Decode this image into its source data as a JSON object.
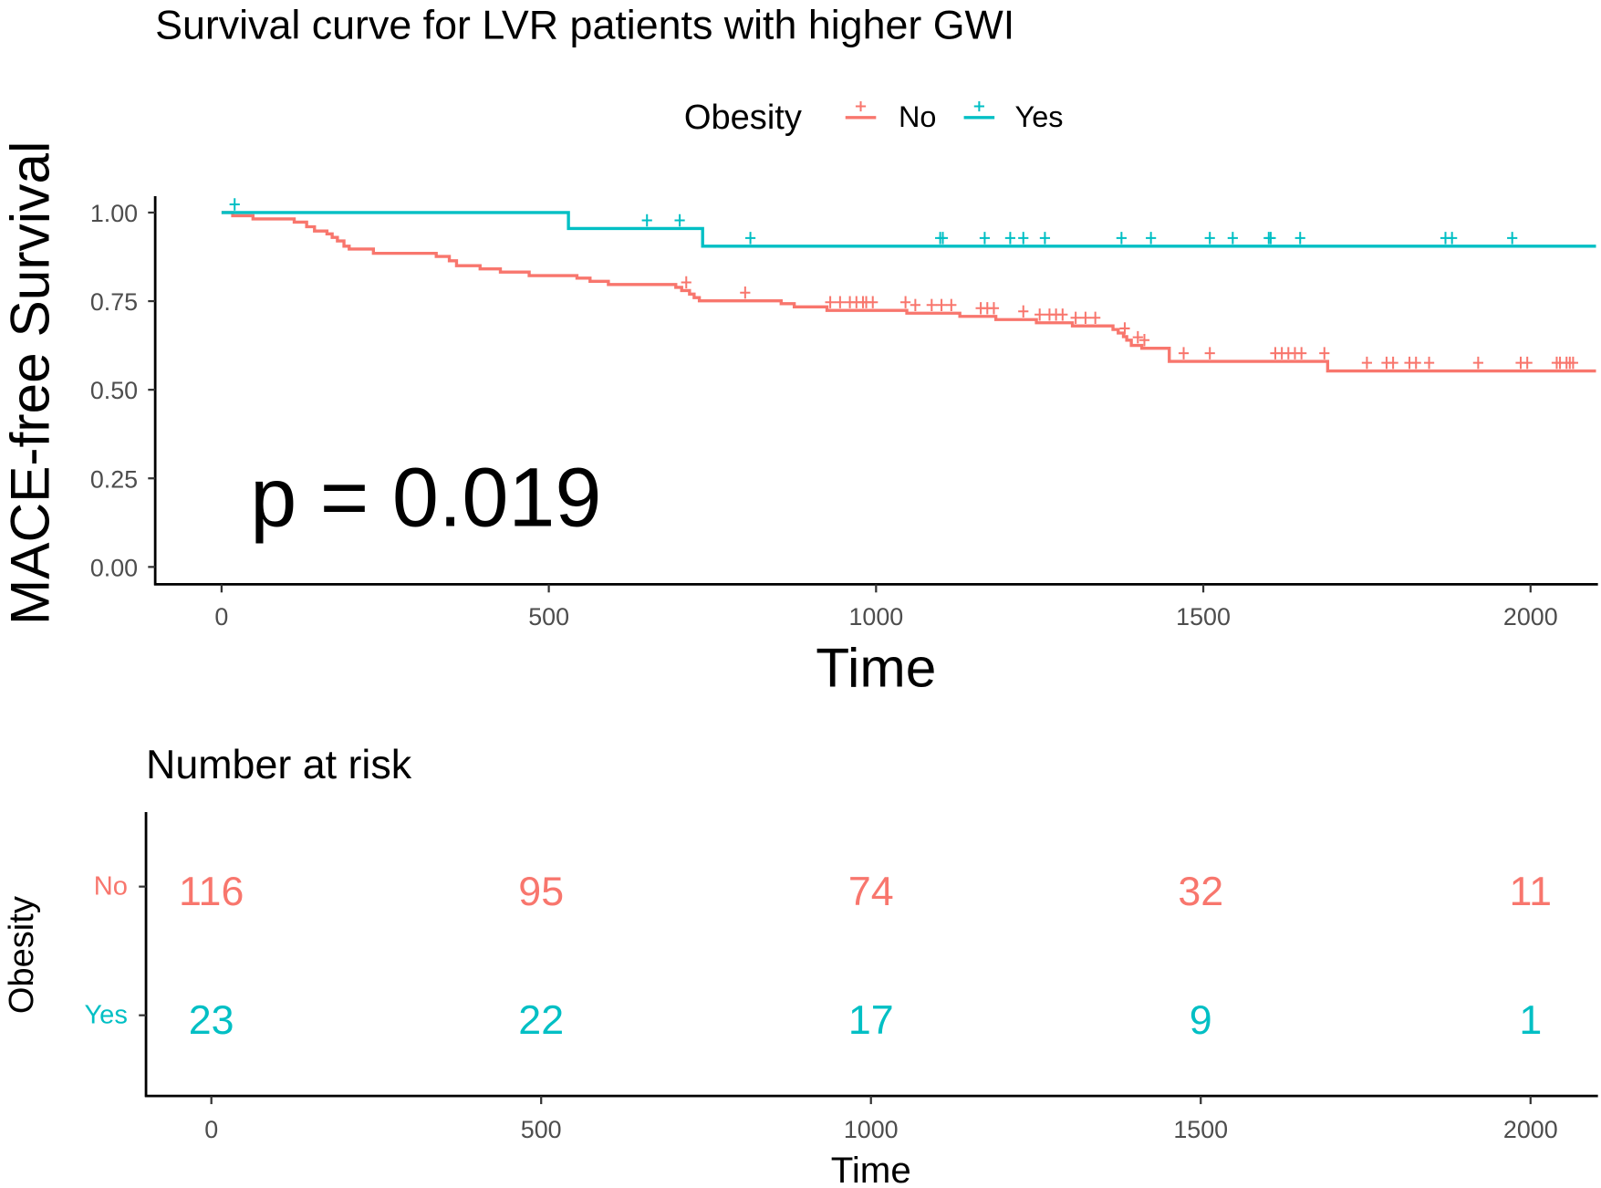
{
  "chart_data": {
    "type": "line",
    "title": "Survival curve for LVR patients with higher GWI",
    "xlabel": "Time",
    "ylabel": "MACE-free Survival",
    "xlim": [
      -100,
      2100
    ],
    "ylim": [
      0,
      1
    ],
    "xticks": [
      "0",
      "500",
      "1000",
      "1500",
      "2000"
    ],
    "xtick_values": [
      0,
      500,
      1000,
      1500,
      2000
    ],
    "yticks": [
      "0.00",
      "0.25",
      "0.50",
      "0.75",
      "1.00"
    ],
    "ytick_values": [
      0,
      0.25,
      0.5,
      0.75,
      1.0
    ],
    "legend": {
      "title": "Obesity",
      "placement": "top",
      "entries": [
        "No",
        "Yes"
      ]
    },
    "annotation": "p = 0.019",
    "grid": false,
    "series": [
      {
        "name": "No",
        "color": "#F8766D",
        "steps": [
          [
            0,
            1.0
          ],
          [
            17,
            0.991
          ],
          [
            48,
            0.982
          ],
          [
            111,
            0.973
          ],
          [
            130,
            0.96
          ],
          [
            142,
            0.948
          ],
          [
            161,
            0.94
          ],
          [
            169,
            0.93
          ],
          [
            177,
            0.92
          ],
          [
            187,
            0.905
          ],
          [
            195,
            0.897
          ],
          [
            232,
            0.885
          ],
          [
            328,
            0.876
          ],
          [
            348,
            0.864
          ],
          [
            359,
            0.85
          ],
          [
            395,
            0.841
          ],
          [
            426,
            0.832
          ],
          [
            470,
            0.822
          ],
          [
            543,
            0.815
          ],
          [
            563,
            0.806
          ],
          [
            591,
            0.797
          ],
          [
            694,
            0.789
          ],
          [
            703,
            0.78
          ],
          [
            715,
            0.77
          ],
          [
            722,
            0.76
          ],
          [
            730,
            0.751
          ],
          [
            855,
            0.743
          ],
          [
            875,
            0.734
          ],
          [
            925,
            0.724
          ],
          [
            1047,
            0.716
          ],
          [
            1128,
            0.707
          ],
          [
            1183,
            0.698
          ],
          [
            1245,
            0.689
          ],
          [
            1300,
            0.68
          ],
          [
            1362,
            0.67
          ],
          [
            1370,
            0.66
          ],
          [
            1378,
            0.65
          ],
          [
            1383,
            0.64
          ],
          [
            1390,
            0.625
          ],
          [
            1406,
            0.617
          ],
          [
            1448,
            0.58
          ],
          [
            1690,
            0.553
          ],
          [
            2100,
            0.553
          ]
        ],
        "censored": [
          710,
          800,
          930,
          945,
          960,
          970,
          980,
          985,
          995,
          1045,
          1060,
          1085,
          1100,
          1115,
          1160,
          1170,
          1180,
          1225,
          1250,
          1265,
          1275,
          1285,
          1305,
          1320,
          1335,
          1380,
          1400,
          1410,
          1470,
          1510,
          1610,
          1620,
          1630,
          1640,
          1650,
          1685,
          1750,
          1780,
          1790,
          1815,
          1825,
          1845,
          1920,
          1985,
          1995,
          2040,
          2045,
          2055,
          2060,
          2065
        ]
      },
      {
        "name": "Yes",
        "color": "#00BFC4",
        "steps": [
          [
            0,
            1.0
          ],
          [
            530,
            0.955
          ],
          [
            735,
            0.905
          ],
          [
            2100,
            0.905
          ]
        ],
        "censored": [
          20,
          650,
          700,
          808,
          1098,
          1102,
          1166,
          1205,
          1225,
          1258,
          1375,
          1420,
          1510,
          1545,
          1600,
          1603,
          1648,
          1870,
          1880,
          1972
        ]
      }
    ],
    "risk_table": {
      "title": "Number at risk",
      "ylabel": "Obesity",
      "xlabel": "Time",
      "times": [
        0,
        500,
        1000,
        1500,
        2000
      ],
      "xticks": [
        "0",
        "500",
        "1000",
        "1500",
        "2000"
      ],
      "rows": [
        {
          "label": "No",
          "color": "#F8766D",
          "counts": [
            "116",
            "95",
            "74",
            "32",
            "11"
          ]
        },
        {
          "label": "Yes",
          "color": "#00BFC4",
          "counts": [
            "23",
            "22",
            "17",
            "9",
            "1"
          ]
        }
      ]
    }
  }
}
